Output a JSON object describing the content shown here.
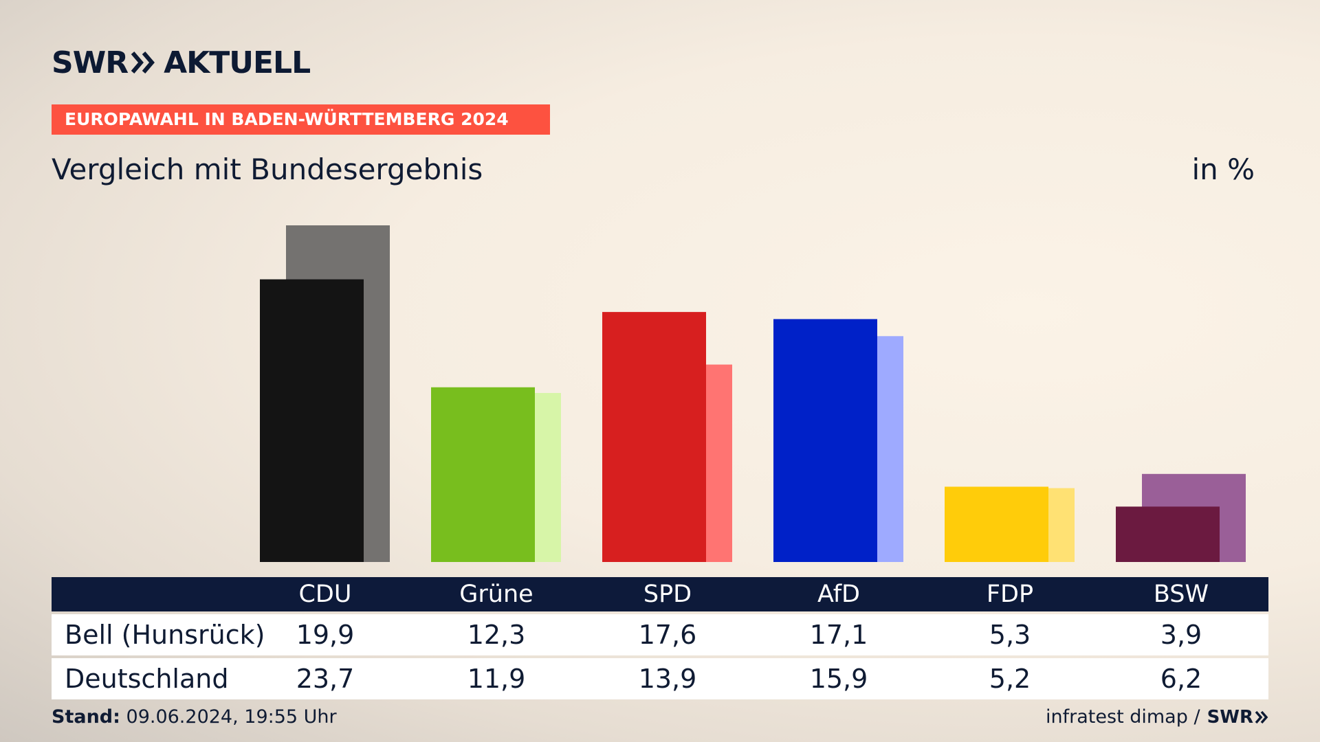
{
  "header": {
    "logo_swr": "SWR",
    "logo_aktuell": "AKTUELL",
    "banner": "EUROPAWAHL IN BADEN-WÜRTTEMBERG 2024",
    "subtitle": "Vergleich mit Bundesergebnis",
    "unit": "in %"
  },
  "chart_data": {
    "type": "bar",
    "categories": [
      "CDU",
      "Grüne",
      "SPD",
      "AfD",
      "FDP",
      "BSW"
    ],
    "series": [
      {
        "name": "Bell (Hunsrück)",
        "values": [
          19.9,
          12.3,
          17.6,
          17.1,
          5.3,
          3.9
        ],
        "colors": [
          "#141414",
          "#78be1e",
          "#d71f1f",
          "#0021c8",
          "#ffcc0a",
          "#6b1a40"
        ]
      },
      {
        "name": "Deutschland",
        "values": [
          23.7,
          11.9,
          13.9,
          15.9,
          5.2,
          6.2
        ],
        "colors": [
          "#747270",
          "#d7f5a8",
          "#ff7472",
          "#9eaaff",
          "#ffe173",
          "#9a5f98"
        ]
      }
    ],
    "value_labels": {
      "Bell (Hunsrück)": [
        "19,9",
        "12,3",
        "17,6",
        "17,1",
        "5,3",
        "3,9"
      ],
      "Deutschland": [
        "23,7",
        "11,9",
        "13,9",
        "15,9",
        "5,2",
        "6,2"
      ]
    },
    "ylim": [
      0,
      23.7
    ]
  },
  "footer": {
    "stand_label": "Stand:",
    "stand_value": "09.06.2024, 19:55 Uhr",
    "source": "infratest dimap /",
    "source_logo": "SWR"
  }
}
